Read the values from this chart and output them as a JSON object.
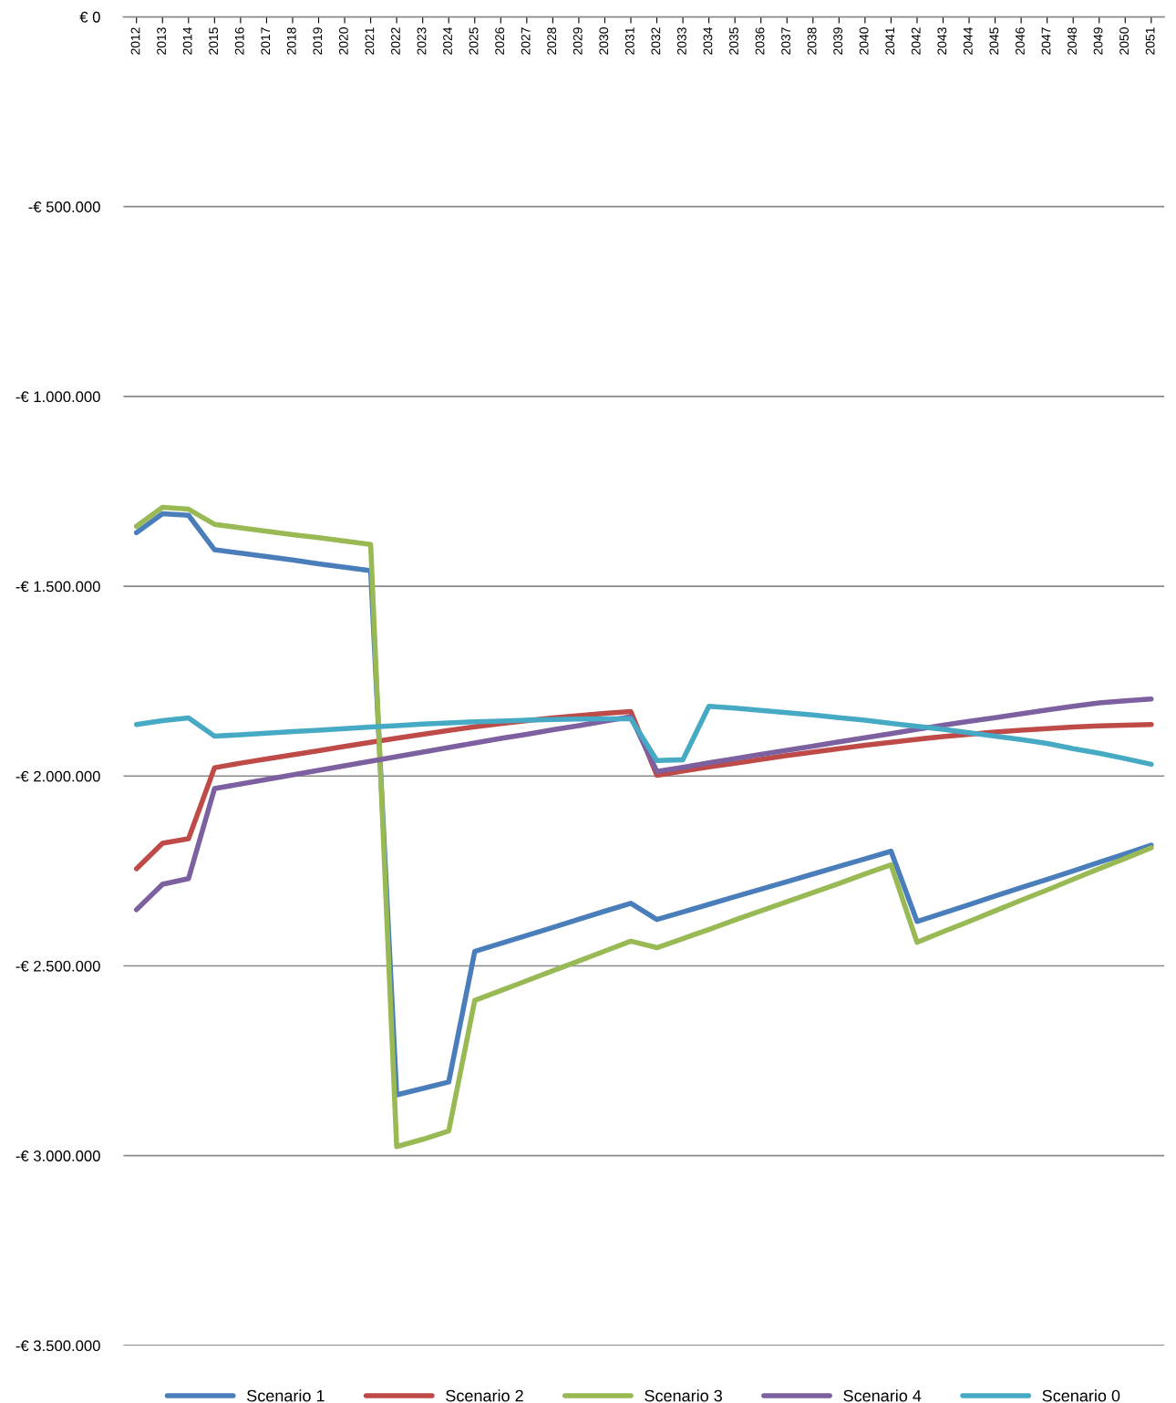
{
  "chart_data": {
    "type": "line",
    "categories": [
      "2012",
      "2013",
      "2014",
      "2015",
      "2016",
      "2017",
      "2018",
      "2019",
      "2020",
      "2021",
      "2022",
      "2023",
      "2024",
      "2025",
      "2026",
      "2027",
      "2028",
      "2029",
      "2030",
      "2031",
      "2032",
      "2033",
      "2034",
      "2035",
      "2036",
      "2037",
      "2038",
      "2039",
      "2040",
      "2041",
      "2042",
      "2043",
      "2044",
      "2045",
      "2046",
      "2047",
      "2048",
      "2049",
      "2050",
      "2051"
    ],
    "series": [
      {
        "name": "Scenario 1",
        "color": "#4a7ebb",
        "values": [
          -1359000,
          -1309000,
          -1313000,
          -1404000,
          -1413000,
          -1422000,
          -1431000,
          -1441000,
          -1450000,
          -1459000,
          -2840000,
          -2823000,
          -2806000,
          -2462000,
          -2441000,
          -2420000,
          -2399000,
          -2377000,
          -2356000,
          -2335000,
          -2378000,
          -2358000,
          -2338000,
          -2318000,
          -2298000,
          -2278000,
          -2258000,
          -2238000,
          -2218000,
          -2198000,
          -2383000,
          -2361000,
          -2339000,
          -2316000,
          -2294000,
          -2272000,
          -2250000,
          -2227000,
          -2205000,
          -2182000
        ]
      },
      {
        "name": "Scenario 2",
        "color": "#be4b48",
        "values": [
          -2244000,
          -2177000,
          -2165000,
          -1978000,
          -1966000,
          -1955000,
          -1944000,
          -1933000,
          -1922000,
          -1911000,
          -1900000,
          -1890000,
          -1880000,
          -1870000,
          -1862000,
          -1854000,
          -1847000,
          -1841000,
          -1835000,
          -1830000,
          -1998000,
          -1987000,
          -1976000,
          -1966000,
          -1956000,
          -1946000,
          -1937000,
          -1928000,
          -1919000,
          -1911000,
          -1903000,
          -1896000,
          -1890000,
          -1884000,
          -1879000,
          -1875000,
          -1871000,
          -1868000,
          -1866000,
          -1864000
        ]
      },
      {
        "name": "Scenario 3",
        "color": "#98b954",
        "values": [
          -1342000,
          -1292000,
          -1297000,
          -1337000,
          -1346000,
          -1355000,
          -1364000,
          -1372000,
          -1381000,
          -1390000,
          -2976000,
          -2957000,
          -2935000,
          -2591000,
          -2565000,
          -2539000,
          -2513000,
          -2487000,
          -2461000,
          -2435000,
          -2452000,
          -2428000,
          -2404000,
          -2379000,
          -2355000,
          -2331000,
          -2307000,
          -2283000,
          -2258000,
          -2234000,
          -2438000,
          -2410000,
          -2383000,
          -2355000,
          -2327000,
          -2300000,
          -2272000,
          -2244000,
          -2217000,
          -2189000
        ]
      },
      {
        "name": "Scenario 4",
        "color": "#7d60a0",
        "values": [
          -2352000,
          -2285000,
          -2270000,
          -2033000,
          -2021000,
          -2009000,
          -1997000,
          -1985000,
          -1973000,
          -1961000,
          -1949000,
          -1937000,
          -1925000,
          -1913000,
          -1901000,
          -1890000,
          -1878000,
          -1867000,
          -1855000,
          -1844000,
          -1988000,
          -1977000,
          -1965000,
          -1954000,
          -1943000,
          -1932000,
          -1921000,
          -1910000,
          -1899000,
          -1888000,
          -1877000,
          -1866000,
          -1856000,
          -1846000,
          -1836000,
          -1826000,
          -1816000,
          -1807000,
          -1802000,
          -1797000
        ]
      },
      {
        "name": "Scenario 0",
        "color": "#46aac5",
        "values": [
          -1864000,
          -1854000,
          -1847000,
          -1895000,
          -1891000,
          -1887000,
          -1883000,
          -1879000,
          -1875000,
          -1871000,
          -1867000,
          -1863000,
          -1860000,
          -1857000,
          -1855000,
          -1853000,
          -1851000,
          -1850000,
          -1849000,
          -1849000,
          -1959000,
          -1957000,
          -1816000,
          -1821000,
          -1827000,
          -1833000,
          -1839000,
          -1846000,
          -1853000,
          -1861000,
          -1869000,
          -1877000,
          -1886000,
          -1895000,
          -1904000,
          -1914000,
          -1928000,
          -1940000,
          -1954000,
          -1969000
        ]
      }
    ],
    "ylim": [
      -3500000,
      0
    ],
    "yticks": [
      {
        "value": -3500000,
        "label": "-€ 3.500.000"
      },
      {
        "value": -3000000,
        "label": "-€ 3.000.000"
      },
      {
        "value": -2500000,
        "label": "-€ 2.500.000"
      },
      {
        "value": -2000000,
        "label": "-€ 2.000.000"
      },
      {
        "value": -1500000,
        "label": "-€ 1.500.000"
      },
      {
        "value": -1000000,
        "label": "-€ 1.000.000"
      },
      {
        "value": -500000,
        "label": "-€ 500.000"
      },
      {
        "value": 0,
        "label": "€ 0"
      }
    ],
    "grid": "y",
    "legend": "bottom",
    "marker": "none",
    "line_style": "solid"
  }
}
